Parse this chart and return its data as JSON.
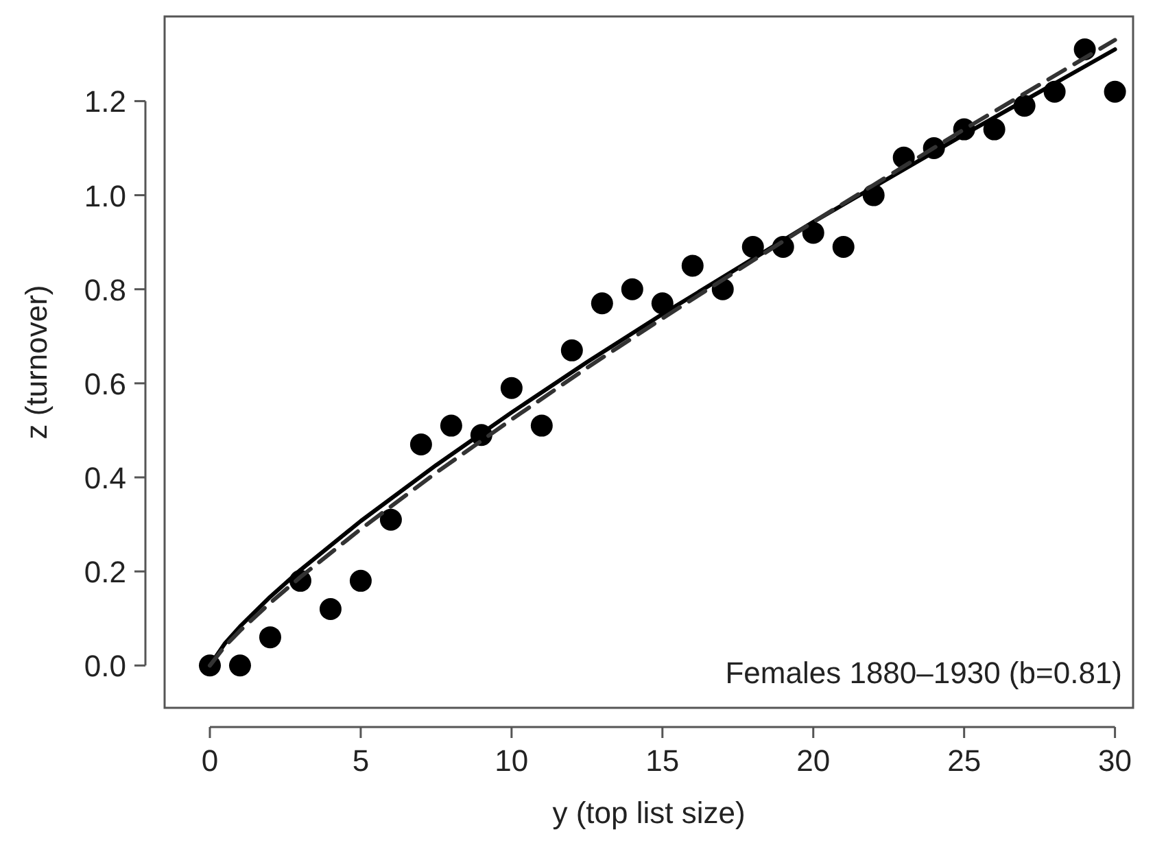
{
  "chart_data": {
    "type": "scatter",
    "xlabel": "y (top list size)",
    "ylabel": "z (turnover)",
    "xlim": [
      -1.5,
      30.6
    ],
    "ylim": [
      -0.09,
      1.38
    ],
    "xticks": [
      0,
      5,
      10,
      15,
      20,
      25,
      30
    ],
    "yticks": [
      {
        "value": 0,
        "label": "0.0"
      },
      {
        "value": 0.2,
        "label": "0.2"
      },
      {
        "value": 0.4,
        "label": "0.4"
      },
      {
        "value": 0.6,
        "label": "0.6"
      },
      {
        "value": 0.8,
        "label": "0.8"
      },
      {
        "value": 1.0,
        "label": "1.0"
      },
      {
        "value": 1.2,
        "label": "1.2"
      }
    ],
    "grid": false,
    "annotations": [
      "Females 1880–1930 (b=0.81)"
    ],
    "series": [
      {
        "color": "#000000",
        "marker": "circle",
        "x": [
          0,
          1,
          2,
          3,
          4,
          5,
          6,
          7,
          8,
          9,
          10,
          11,
          12,
          13,
          14,
          15,
          16,
          17,
          18,
          19,
          20,
          21,
          22,
          23,
          24,
          25,
          26,
          27,
          28,
          29,
          30
        ],
        "values": [
          0,
          0,
          0.06,
          0.18,
          0.12,
          0.18,
          0.31,
          0.47,
          0.51,
          0.49,
          0.59,
          0.51,
          0.67,
          0.77,
          0.8,
          0.77,
          0.85,
          0.8,
          0.89,
          0.89,
          0.92,
          0.89,
          1.0,
          1.08,
          1.1,
          1.14,
          1.14,
          1.19,
          1.22,
          1.31,
          1.22
        ]
      },
      {
        "type": "line",
        "color": "#000000",
        "line_style": "solid",
        "x": [
          0,
          0.5,
          1,
          2,
          3,
          5,
          7.5,
          10,
          12.5,
          15,
          20,
          25,
          30
        ],
        "values": [
          0,
          0.047,
          0.083,
          0.146,
          0.203,
          0.307,
          0.426,
          0.538,
          0.645,
          0.747,
          0.943,
          1.129,
          1.31
        ]
      },
      {
        "type": "line",
        "color": "#333333",
        "line_style": "dashed",
        "x": [
          0,
          0.5,
          1,
          2,
          3,
          5,
          7.5,
          10,
          12.5,
          15,
          20,
          25,
          30
        ],
        "values": [
          0,
          0.041,
          0.074,
          0.133,
          0.188,
          0.29,
          0.41,
          0.523,
          0.633,
          0.738,
          0.943,
          1.14,
          1.33
        ]
      }
    ]
  }
}
